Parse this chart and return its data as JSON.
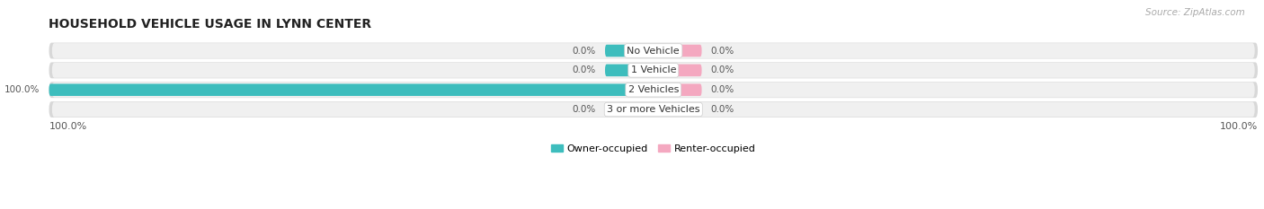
{
  "title": "HOUSEHOLD VEHICLE USAGE IN LYNN CENTER",
  "source": "Source: ZipAtlas.com",
  "categories": [
    "No Vehicle",
    "1 Vehicle",
    "2 Vehicles",
    "3 or more Vehicles"
  ],
  "owner_values": [
    0.0,
    0.0,
    100.0,
    0.0
  ],
  "renter_values": [
    0.0,
    0.0,
    0.0,
    0.0
  ],
  "owner_color": "#3dbdbd",
  "renter_color": "#f4a8c0",
  "row_bg_color": "#e8e8e8",
  "row_inner_color": "#f5f5f5",
  "title_fontsize": 10,
  "source_fontsize": 7.5,
  "label_fontsize": 7.5,
  "cat_fontsize": 8,
  "axis_label_fontsize": 8,
  "legend_fontsize": 8,
  "x_axis_left_label": "100.0%",
  "x_axis_right_label": "100.0%",
  "stub_size": 8.0,
  "figsize": [
    14.06,
    2.33
  ],
  "dpi": 100
}
